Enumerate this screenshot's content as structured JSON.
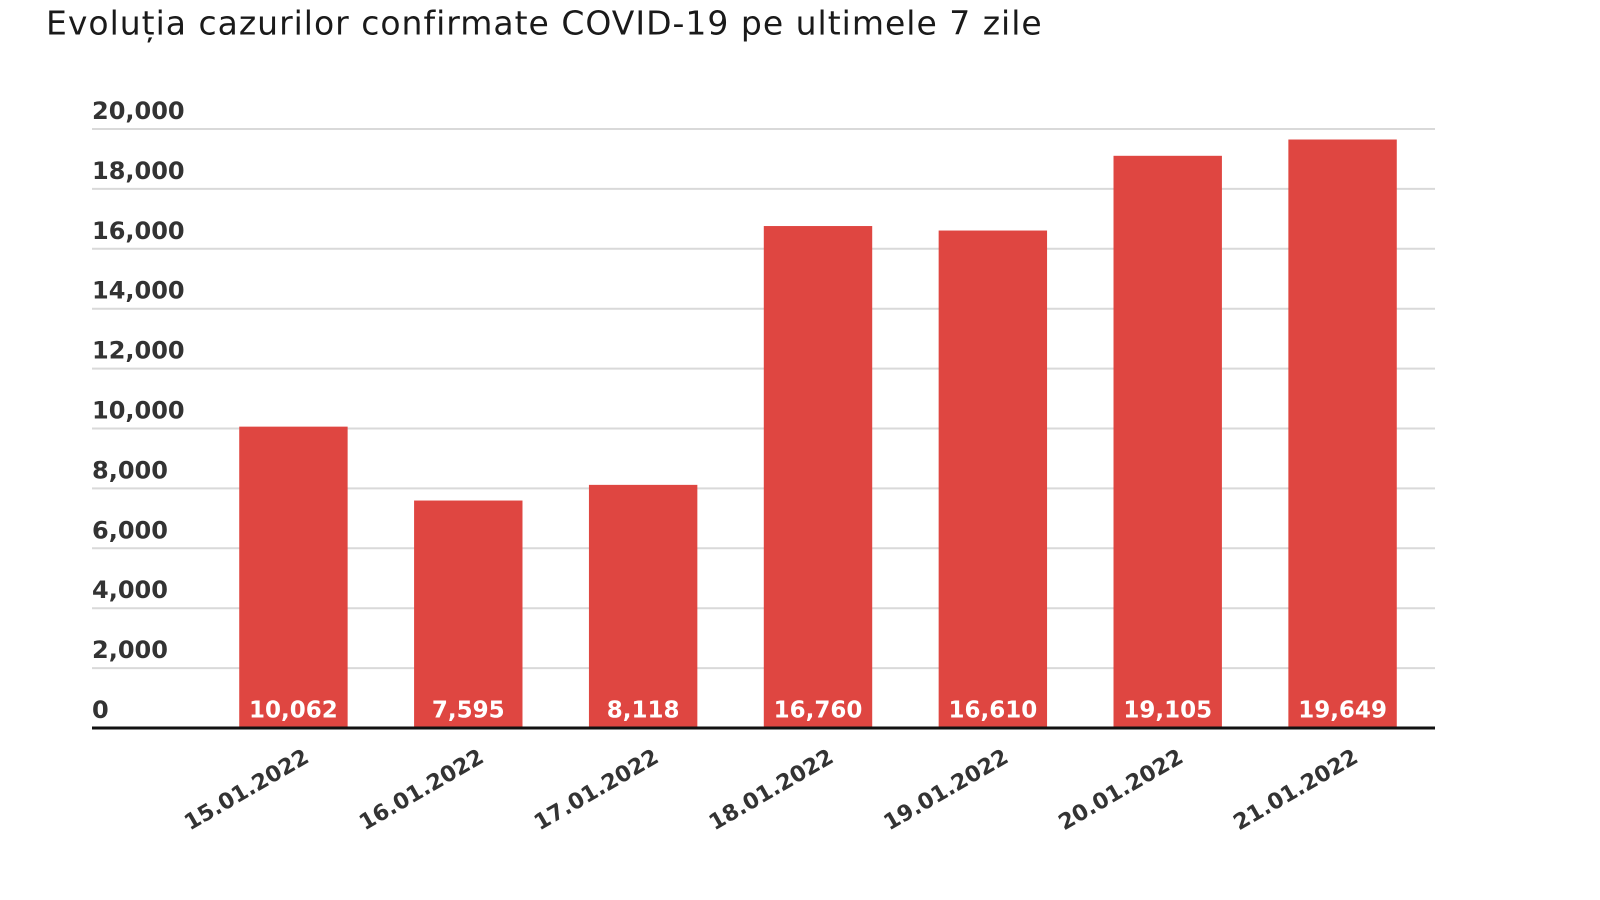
{
  "chart_data": {
    "type": "bar",
    "title": "Evoluția cazurilor confirmate COVID-19 pe ultimele 7 zile",
    "categories": [
      "15.01.2022",
      "16.01.2022",
      "17.01.2022",
      "18.01.2022",
      "19.01.2022",
      "20.01.2022",
      "21.01.2022"
    ],
    "values": [
      10062,
      7595,
      8118,
      16760,
      16610,
      19105,
      19649
    ],
    "value_labels": [
      "10,062",
      "7,595",
      "8,118",
      "16,760",
      "16,610",
      "19,105",
      "19,649"
    ],
    "color": "#df4641",
    "ylim": [
      0,
      20000
    ],
    "yticks": [
      0,
      {
        "value": 2000,
        "label": "2,000"
      },
      {
        "value": 4000,
        "label": "4,000"
      },
      {
        "value": 6000,
        "label": "6,000"
      },
      {
        "value": 8000,
        "label": "8,000"
      },
      {
        "value": 10000,
        "label": "10,000"
      },
      {
        "value": 12000,
        "label": "12,000"
      },
      {
        "value": 14000,
        "label": "14,000"
      },
      {
        "value": 16000,
        "label": "16,000"
      },
      {
        "value": 18000,
        "label": "18,000"
      },
      {
        "value": 20000,
        "label": "20,000"
      }
    ],
    "grid": true
  }
}
